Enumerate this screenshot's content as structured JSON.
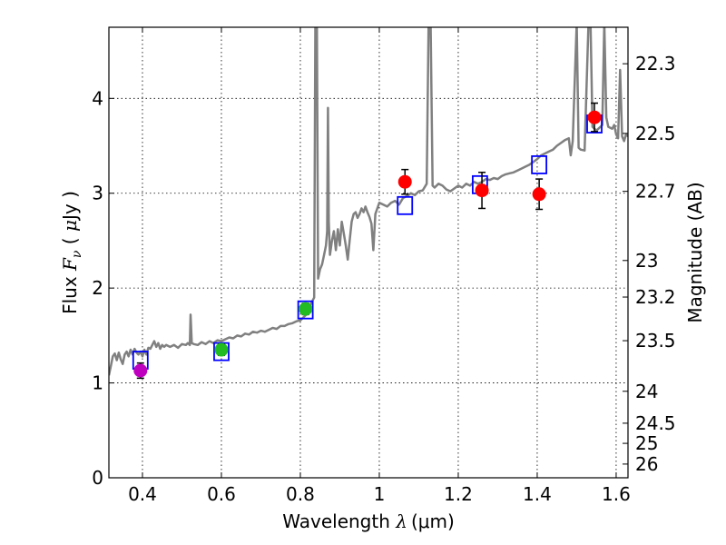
{
  "chart_data": {
    "type": "scatter",
    "xlabel": {
      "prefix": "Wavelength  ",
      "symbol": "λ",
      "unit": "(μm)"
    },
    "ylabel": {
      "prefix": "Flux  ",
      "symbol": "F",
      "subscript": "ν",
      "open": "  (  ",
      "unit": "μ",
      "unit_rest": "Jy  )"
    },
    "y2label": "Magnitude (AB)",
    "xlim": [
      0.315,
      1.63
    ],
    "ylim": [
      0,
      4.75
    ],
    "grid": true,
    "x_ticks": [
      {
        "value": 0.4,
        "label": "0.4"
      },
      {
        "value": 0.6,
        "label": "0.6"
      },
      {
        "value": 0.8,
        "label": "0.8"
      },
      {
        "value": 1.0,
        "label": "1"
      },
      {
        "value": 1.2,
        "label": "1.2"
      },
      {
        "value": 1.4,
        "label": "1.4"
      },
      {
        "value": 1.6,
        "label": "1.6"
      }
    ],
    "y_ticks": [
      {
        "value": 0,
        "label": "0"
      },
      {
        "value": 1,
        "label": "1"
      },
      {
        "value": 2,
        "label": "2"
      },
      {
        "value": 3,
        "label": "3"
      },
      {
        "value": 4,
        "label": "4"
      }
    ],
    "y2_ticks": [
      {
        "value": 22.3,
        "label": "22.3"
      },
      {
        "value": 22.5,
        "label": "22.5"
      },
      {
        "value": 22.7,
        "label": "22.7"
      },
      {
        "value": 23.0,
        "label": "23"
      },
      {
        "value": 23.2,
        "label": "23.2"
      },
      {
        "value": 23.5,
        "label": "23.5"
      },
      {
        "value": 24.0,
        "label": "24"
      },
      {
        "value": 24.5,
        "label": "24.5"
      },
      {
        "value": 25.0,
        "label": "25"
      },
      {
        "value": 26.0,
        "label": "26"
      }
    ],
    "model_color": "#808080",
    "model_spectrum": [
      [
        0.315,
        1.08
      ],
      [
        0.32,
        1.18
      ],
      [
        0.325,
        1.28
      ],
      [
        0.33,
        1.31
      ],
      [
        0.335,
        1.24
      ],
      [
        0.34,
        1.32
      ],
      [
        0.345,
        1.25
      ],
      [
        0.35,
        1.2
      ],
      [
        0.355,
        1.3
      ],
      [
        0.36,
        1.33
      ],
      [
        0.365,
        1.28
      ],
      [
        0.37,
        1.35
      ],
      [
        0.375,
        1.3
      ],
      [
        0.38,
        1.36
      ],
      [
        0.385,
        1.32
      ],
      [
        0.39,
        1.3
      ],
      [
        0.395,
        1.33
      ],
      [
        0.4,
        1.28
      ],
      [
        0.405,
        1.35
      ],
      [
        0.41,
        1.3
      ],
      [
        0.415,
        1.37
      ],
      [
        0.42,
        1.36
      ],
      [
        0.425,
        1.4
      ],
      [
        0.43,
        1.44
      ],
      [
        0.435,
        1.38
      ],
      [
        0.44,
        1.42
      ],
      [
        0.445,
        1.36
      ],
      [
        0.45,
        1.4
      ],
      [
        0.455,
        1.38
      ],
      [
        0.46,
        1.4
      ],
      [
        0.47,
        1.38
      ],
      [
        0.48,
        1.4
      ],
      [
        0.49,
        1.37
      ],
      [
        0.5,
        1.41
      ],
      [
        0.51,
        1.4
      ],
      [
        0.515,
        1.42
      ],
      [
        0.52,
        1.4
      ],
      [
        0.522,
        1.72
      ],
      [
        0.525,
        1.42
      ],
      [
        0.53,
        1.41
      ],
      [
        0.54,
        1.4
      ],
      [
        0.55,
        1.43
      ],
      [
        0.56,
        1.41
      ],
      [
        0.57,
        1.44
      ],
      [
        0.58,
        1.42
      ],
      [
        0.59,
        1.45
      ],
      [
        0.6,
        1.44
      ],
      [
        0.61,
        1.46
      ],
      [
        0.62,
        1.48
      ],
      [
        0.63,
        1.47
      ],
      [
        0.64,
        1.5
      ],
      [
        0.65,
        1.49
      ],
      [
        0.66,
        1.52
      ],
      [
        0.67,
        1.51
      ],
      [
        0.68,
        1.54
      ],
      [
        0.69,
        1.53
      ],
      [
        0.7,
        1.55
      ],
      [
        0.71,
        1.54
      ],
      [
        0.72,
        1.56
      ],
      [
        0.73,
        1.58
      ],
      [
        0.74,
        1.57
      ],
      [
        0.75,
        1.6
      ],
      [
        0.76,
        1.6
      ],
      [
        0.77,
        1.62
      ],
      [
        0.78,
        1.63
      ],
      [
        0.79,
        1.65
      ],
      [
        0.8,
        1.66
      ],
      [
        0.81,
        1.7
      ],
      [
        0.82,
        1.74
      ],
      [
        0.825,
        1.82
      ],
      [
        0.83,
        1.86
      ],
      [
        0.835,
        1.9
      ],
      [
        0.838,
        4.8
      ],
      [
        0.842,
        4.8
      ],
      [
        0.845,
        2.1
      ],
      [
        0.85,
        2.2
      ],
      [
        0.855,
        2.25
      ],
      [
        0.86,
        2.35
      ],
      [
        0.865,
        2.45
      ],
      [
        0.868,
        2.6
      ],
      [
        0.87,
        3.9
      ],
      [
        0.872,
        2.7
      ],
      [
        0.875,
        2.35
      ],
      [
        0.88,
        2.5
      ],
      [
        0.885,
        2.6
      ],
      [
        0.89,
        2.4
      ],
      [
        0.895,
        2.62
      ],
      [
        0.9,
        2.45
      ],
      [
        0.905,
        2.7
      ],
      [
        0.91,
        2.58
      ],
      [
        0.915,
        2.45
      ],
      [
        0.92,
        2.3
      ],
      [
        0.925,
        2.5
      ],
      [
        0.93,
        2.7
      ],
      [
        0.935,
        2.78
      ],
      [
        0.94,
        2.8
      ],
      [
        0.945,
        2.74
      ],
      [
        0.95,
        2.78
      ],
      [
        0.955,
        2.84
      ],
      [
        0.96,
        2.8
      ],
      [
        0.965,
        2.86
      ],
      [
        0.97,
        2.8
      ],
      [
        0.975,
        2.75
      ],
      [
        0.98,
        2.68
      ],
      [
        0.985,
        2.4
      ],
      [
        0.99,
        2.78
      ],
      [
        0.995,
        2.84
      ],
      [
        1.0,
        2.9
      ],
      [
        1.01,
        2.88
      ],
      [
        1.02,
        2.86
      ],
      [
        1.03,
        2.9
      ],
      [
        1.04,
        2.92
      ],
      [
        1.05,
        2.88
      ],
      [
        1.06,
        2.95
      ],
      [
        1.07,
        2.97
      ],
      [
        1.08,
        3.0
      ],
      [
        1.09,
        2.98
      ],
      [
        1.1,
        3.02
      ],
      [
        1.11,
        3.03
      ],
      [
        1.12,
        3.1
      ],
      [
        1.125,
        4.8
      ],
      [
        1.13,
        4.8
      ],
      [
        1.135,
        3.08
      ],
      [
        1.14,
        3.06
      ],
      [
        1.15,
        3.1
      ],
      [
        1.16,
        3.08
      ],
      [
        1.17,
        3.04
      ],
      [
        1.18,
        3.02
      ],
      [
        1.19,
        3.05
      ],
      [
        1.2,
        3.08
      ],
      [
        1.21,
        3.06
      ],
      [
        1.22,
        3.1
      ],
      [
        1.23,
        3.08
      ],
      [
        1.24,
        3.12
      ],
      [
        1.25,
        3.1
      ],
      [
        1.26,
        3.12
      ],
      [
        1.27,
        3.15
      ],
      [
        1.28,
        3.14
      ],
      [
        1.29,
        3.16
      ],
      [
        1.3,
        3.15
      ],
      [
        1.31,
        3.18
      ],
      [
        1.32,
        3.2
      ],
      [
        1.33,
        3.21
      ],
      [
        1.34,
        3.22
      ],
      [
        1.35,
        3.24
      ],
      [
        1.36,
        3.26
      ],
      [
        1.37,
        3.28
      ],
      [
        1.38,
        3.3
      ],
      [
        1.39,
        3.33
      ],
      [
        1.4,
        3.36
      ],
      [
        1.41,
        3.4
      ],
      [
        1.42,
        3.42
      ],
      [
        1.43,
        3.44
      ],
      [
        1.44,
        3.46
      ],
      [
        1.45,
        3.5
      ],
      [
        1.46,
        3.53
      ],
      [
        1.47,
        3.56
      ],
      [
        1.48,
        3.58
      ],
      [
        1.485,
        3.4
      ],
      [
        1.49,
        3.55
      ],
      [
        1.5,
        4.8
      ],
      [
        1.505,
        3.48
      ],
      [
        1.51,
        3.46
      ],
      [
        1.52,
        3.45
      ],
      [
        1.53,
        4.8
      ],
      [
        1.535,
        4.8
      ],
      [
        1.54,
        3.7
      ],
      [
        1.55,
        3.66
      ],
      [
        1.56,
        3.7
      ],
      [
        1.565,
        3.72
      ],
      [
        1.57,
        4.8
      ],
      [
        1.575,
        3.8
      ],
      [
        1.58,
        3.7
      ],
      [
        1.59,
        3.68
      ],
      [
        1.595,
        3.72
      ],
      [
        1.6,
        3.62
      ],
      [
        1.605,
        3.58
      ],
      [
        1.61,
        4.3
      ],
      [
        1.615,
        3.6
      ],
      [
        1.62,
        3.55
      ],
      [
        1.625,
        3.62
      ],
      [
        1.63,
        3.6
      ]
    ],
    "model_photometry": {
      "color": "#0000ff",
      "points": [
        [
          0.395,
          1.24
        ],
        [
          0.6,
          1.33
        ],
        [
          0.813,
          1.77
        ],
        [
          1.065,
          2.87
        ],
        [
          1.255,
          3.09
        ],
        [
          1.405,
          3.3
        ],
        [
          1.545,
          3.73
        ]
      ]
    },
    "observed_photometry": [
      {
        "x": 0.395,
        "y": 1.13,
        "err": 0.08,
        "color": "#bf00bf"
      },
      {
        "x": 0.6,
        "y": 1.35,
        "err": 0.06,
        "color": "#22bb22"
      },
      {
        "x": 0.813,
        "y": 1.78,
        "err": 0.06,
        "color": "#22bb22"
      },
      {
        "x": 1.065,
        "y": 3.12,
        "err": 0.13,
        "color": "#ff0000"
      },
      {
        "x": 1.26,
        "y": 3.03,
        "err": 0.19,
        "color": "#ff0000"
      },
      {
        "x": 1.405,
        "y": 2.99,
        "err": 0.16,
        "color": "#ff0000"
      },
      {
        "x": 1.545,
        "y": 3.8,
        "err": 0.15,
        "color": "#ff0000"
      }
    ]
  }
}
